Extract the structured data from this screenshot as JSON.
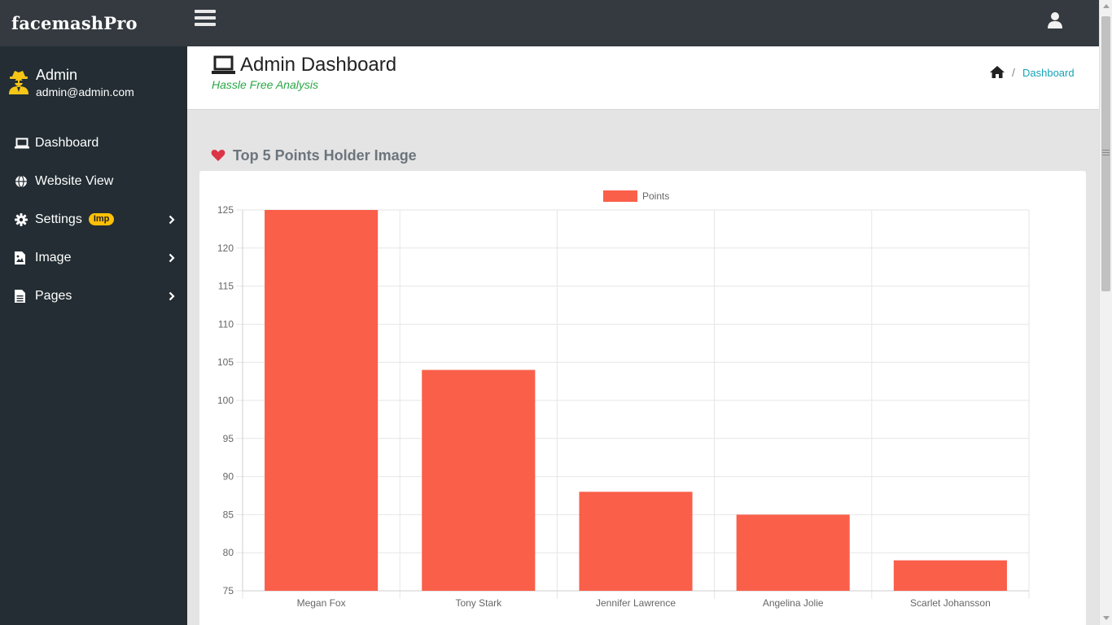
{
  "brand": {
    "name": "facemashPro"
  },
  "topbar": {
    "menu_icon": "hamburger-icon",
    "user_icon": "user-icon"
  },
  "sidebar": {
    "user": {
      "name": "Admin",
      "email": "admin@admin.com",
      "icon": "user-secret-icon"
    },
    "items": [
      {
        "label": "Dashboard",
        "icon": "laptop-icon"
      },
      {
        "label": "Website View",
        "icon": "globe-icon"
      },
      {
        "label": "Settings",
        "icon": "gear-icon",
        "badge": "Imp",
        "badge_color": "#ffc107"
      },
      {
        "label": "Image",
        "icon": "file-image-icon"
      },
      {
        "label": "Pages",
        "icon": "file-icon"
      }
    ]
  },
  "header": {
    "title": "Admin Dashboard",
    "subtitle": "Hassle Free Analysis",
    "breadcrumb": {
      "home_icon": "home-icon",
      "separator": "/",
      "current": "Dashboard"
    }
  },
  "section": {
    "title": "Top 5 Points Holder Image",
    "icon": "heart-icon"
  },
  "colors": {
    "accent": "#17a2b8",
    "bar": "#fa5f4a",
    "sidebar": "#232d33",
    "topbar": "#343a40",
    "heart": "#dc3545",
    "subtitle": "#28a745"
  },
  "chart_data": {
    "type": "bar",
    "categories": [
      "Megan Fox",
      "Tony Stark",
      "Jennifer Lawrence",
      "Angelina Jolie",
      "Scarlet Johansson"
    ],
    "series": [
      {
        "name": "Points",
        "values": [
          125,
          104,
          88,
          85,
          79
        ],
        "color": "#fa5f4a"
      }
    ],
    "ylim": [
      75,
      125
    ],
    "yticks": [
      75,
      80,
      85,
      90,
      95,
      100,
      105,
      110,
      115,
      120,
      125
    ],
    "legend": "top-center",
    "grid": true
  }
}
